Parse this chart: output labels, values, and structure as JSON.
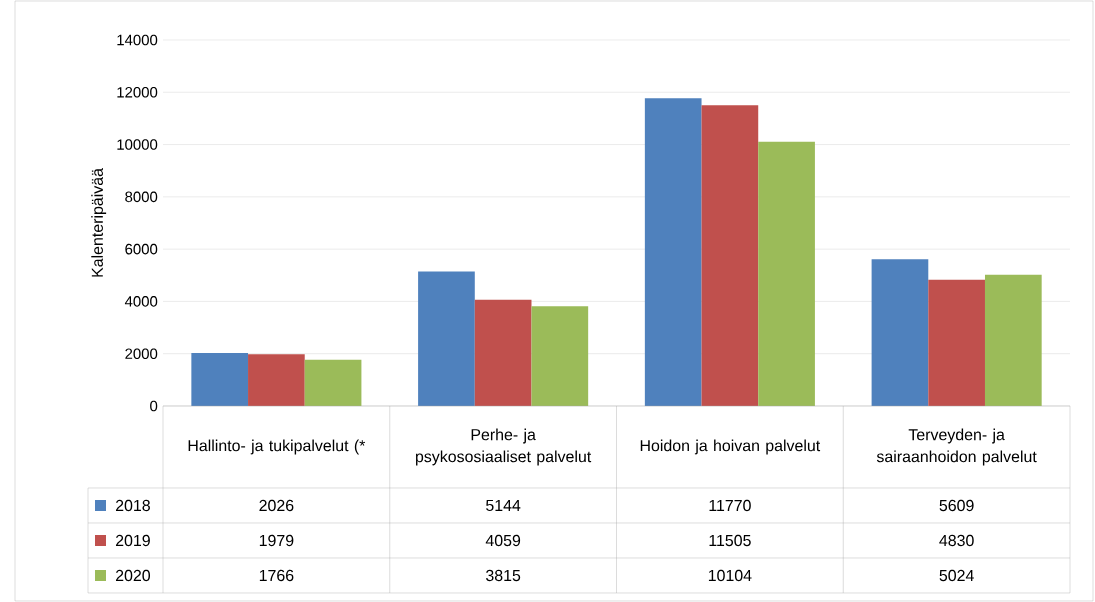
{
  "chart_data": {
    "type": "bar",
    "ylabel": "Kalenteripäivää",
    "categories": [
      "Hallinto- ja tukipalvelut (*",
      "Perhe- ja psykososiaaliset palvelut",
      "Hoidon ja hoivan palvelut",
      "Terveyden- ja sairaanhoidon palvelut"
    ],
    "series": [
      {
        "name": "2018",
        "color": "#4f81bd",
        "values": [
          2026,
          5144,
          11770,
          5609
        ]
      },
      {
        "name": "2019",
        "color": "#c0504d",
        "values": [
          1979,
          4059,
          11505,
          4830
        ]
      },
      {
        "name": "2020",
        "color": "#9bbb59",
        "values": [
          1766,
          3815,
          10104,
          5024
        ]
      }
    ],
    "ylim": [
      0,
      14000
    ],
    "yticks": [
      0,
      2000,
      4000,
      6000,
      8000,
      10000,
      12000,
      14000
    ],
    "grid": "y",
    "legend": "bottom",
    "data_labels": true
  }
}
